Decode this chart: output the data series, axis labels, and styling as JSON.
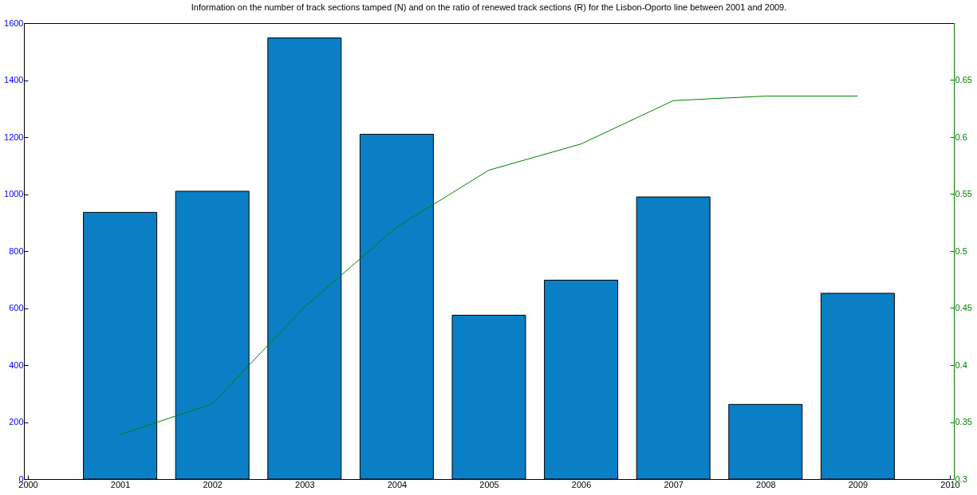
{
  "chart_data": {
    "type": "bar",
    "title": "Information on the number of track sections tamped (N) and on the ratio of renewed track sections (R) for the Lisbon-Oporto line between 2001 and 2009.",
    "x": [
      2001,
      2002,
      2003,
      2004,
      2005,
      2006,
      2007,
      2008,
      2009
    ],
    "series": [
      {
        "color": "#0a7fc6",
        "values": [
          936,
          1010,
          1548,
          1210,
          575,
          698,
          990,
          262,
          652
        ]
      },
      {
        "type": "line",
        "axis": "y2",
        "color": "#008000",
        "values": [
          0.339,
          0.366,
          0.451,
          0.521,
          0.571,
          0.594,
          0.632,
          0.636,
          0.636
        ]
      }
    ],
    "xlim": [
      2000,
      2010
    ],
    "xticks": [
      2000,
      2001,
      2002,
      2003,
      2004,
      2005,
      2006,
      2007,
      2008,
      2009,
      2010
    ],
    "ylim": [
      0,
      1600
    ],
    "yticks": [
      0,
      200,
      400,
      600,
      800,
      1000,
      1200,
      1400,
      1600
    ],
    "y2lim": [
      0.3,
      0.7
    ],
    "y2ticks": [
      0.3,
      0.35,
      0.4,
      0.45,
      0.5,
      0.55,
      0.6,
      0.65
    ],
    "grid": false
  }
}
